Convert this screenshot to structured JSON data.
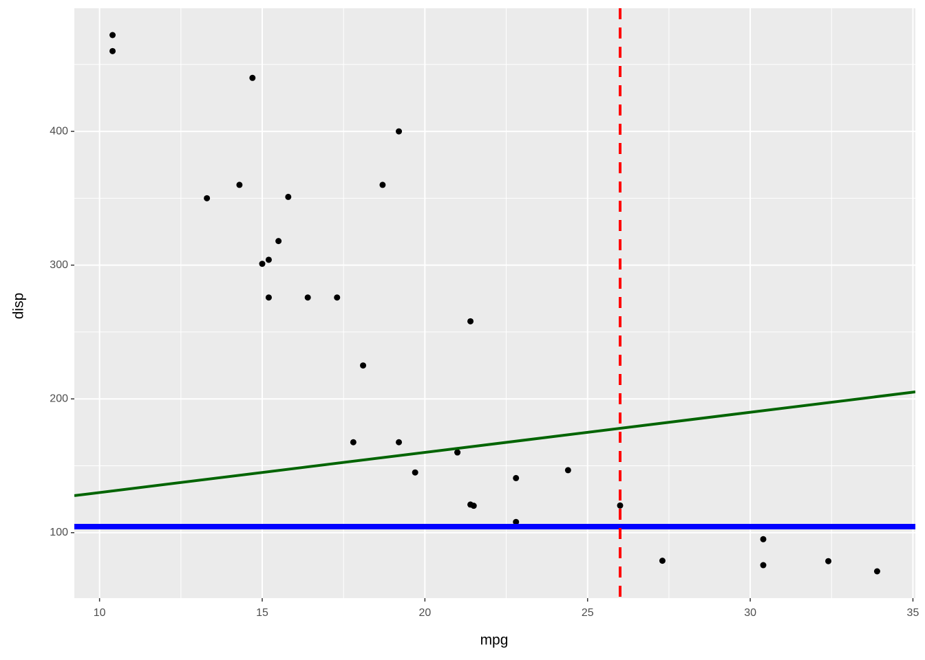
{
  "chart_data": {
    "type": "scatter",
    "x_label": "mpg",
    "y_label": "disp",
    "x": [
      21,
      21,
      22.8,
      21.4,
      18.7,
      18.1,
      14.3,
      24.4,
      22.8,
      19.2,
      17.8,
      16.4,
      17.3,
      15.2,
      10.4,
      10.4,
      14.7,
      32.4,
      30.4,
      33.9,
      21.5,
      15.5,
      15.2,
      13.3,
      19.2,
      27.3,
      26,
      30.4,
      15.8,
      19.7,
      15,
      21.4
    ],
    "values": [
      160,
      160,
      108,
      258,
      360,
      225,
      360,
      146.7,
      140.8,
      167.6,
      167.6,
      275.8,
      275.8,
      275.8,
      472,
      460,
      440,
      78.7,
      75.7,
      71.1,
      120.1,
      318,
      304,
      350,
      400,
      79,
      120.3,
      95.1,
      351,
      145,
      301,
      121
    ],
    "color": "#000000",
    "xlim": [
      9.225,
      35.075
    ],
    "ylim": [
      51.055,
      492.045
    ],
    "xticks": [
      10,
      15,
      20,
      25,
      30,
      35
    ],
    "yticks": [
      100,
      200,
      300,
      400
    ],
    "x_minor_ticks": [
      12.5,
      17.5,
      22.5,
      27.5,
      32.5
    ],
    "y_minor_ticks": [
      150,
      250,
      350,
      450
    ],
    "grid": true,
    "hline": {
      "yintercept": 104.5,
      "color": "#0000ff"
    },
    "vline": {
      "xintercept": 26,
      "color": "#ff0000",
      "dashed": true
    },
    "abline": {
      "intercept": 100,
      "slope": 3,
      "color": "#006400"
    }
  }
}
